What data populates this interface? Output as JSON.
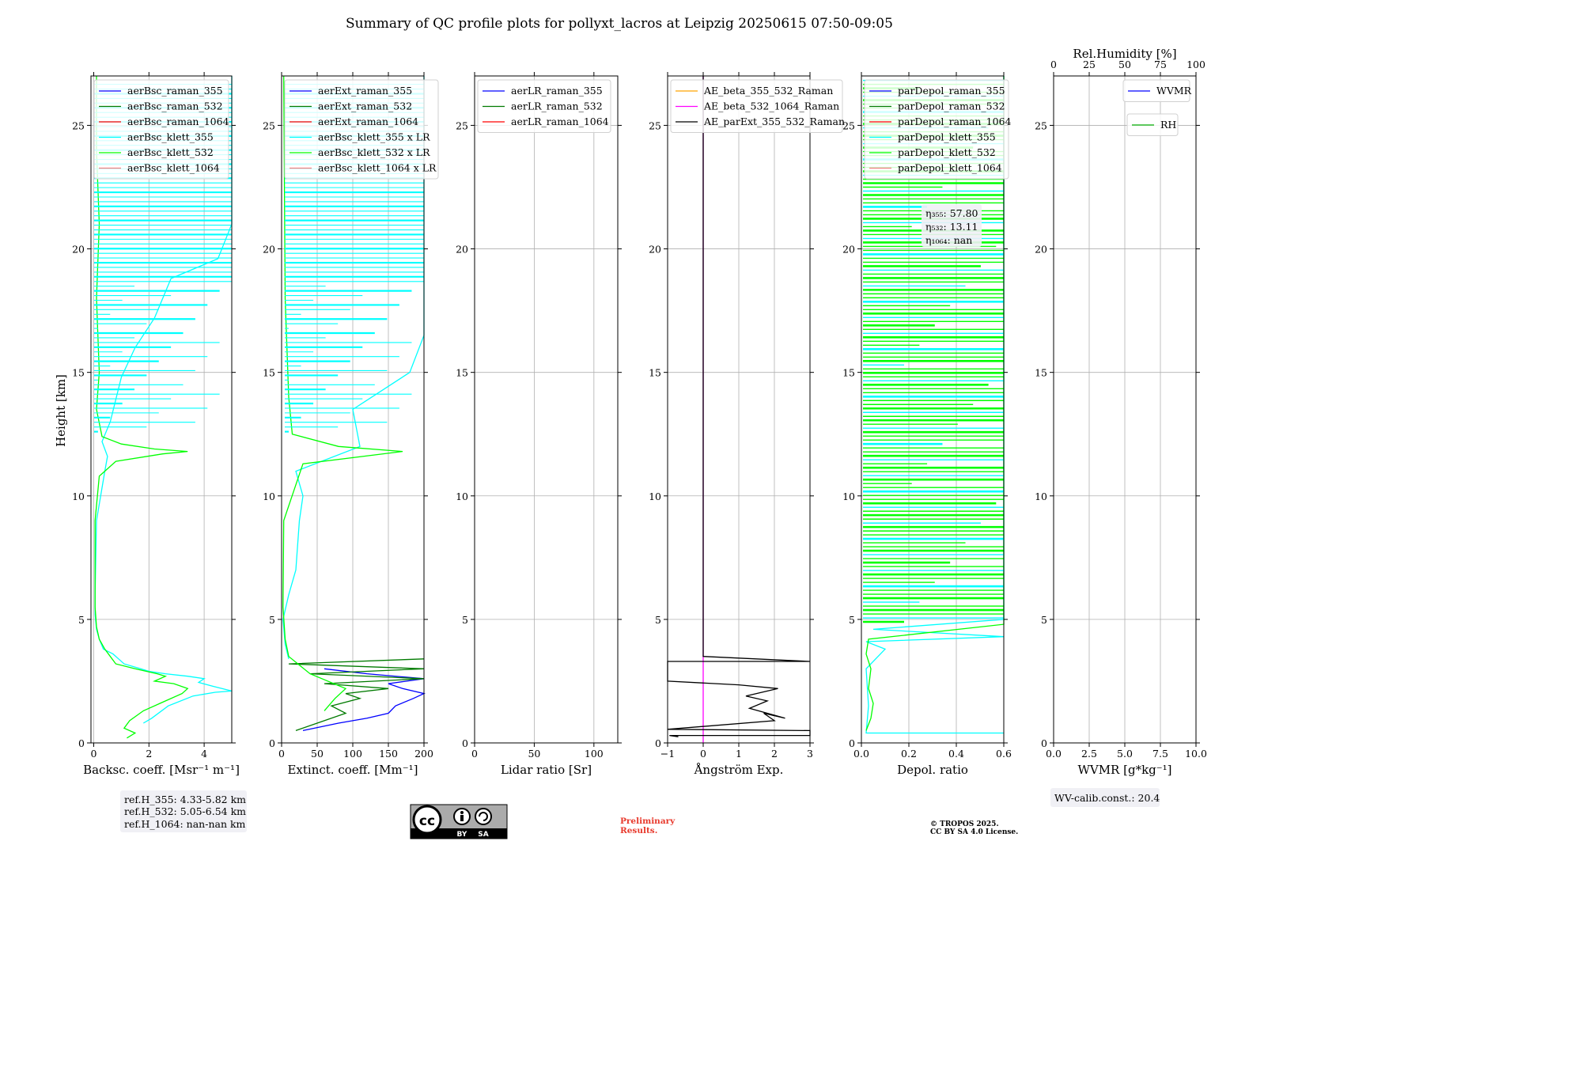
{
  "figure": {
    "title": "Summary of QC profile plots for pollyxt_lacros at Leipzig 20250615 07:50-09:05",
    "ylabel": "Height [km]",
    "ref_heights": [
      "ref.H_355: 4.33-5.82 km",
      "ref.H_532: 5.05-6.54 km",
      "ref.H_1064: nan-nan km"
    ],
    "wv_calib": "WV-calib.const.: 20.4",
    "preliminary": [
      "Preliminary",
      "Results."
    ],
    "copyright": [
      "© TROPOS 2025.",
      "CC BY SA 4.0 License."
    ],
    "license_badge": {
      "icon": "cc-by-sa-icon",
      "labels": [
        "BY",
        "SA"
      ]
    },
    "colors": {
      "blue": "#0000ff",
      "darkgreen": "#007a00",
      "red": "#ff0000",
      "cyan": "#00ffff",
      "lime": "#00ff00",
      "salmon": "#f08080",
      "orange": "#ffa500",
      "magenta": "#ff00ff",
      "black": "#000000"
    }
  },
  "chart_data": [
    {
      "type": "line",
      "name": "backscatter",
      "xlabel": "Backsc. coeff. [Msr⁻¹ m⁻¹]",
      "xlim": [
        -0.1,
        5
      ],
      "ylim": [
        0,
        27
      ],
      "xticks": [
        "0",
        "2",
        "4"
      ],
      "xtick_values": [
        0,
        2,
        4
      ],
      "yticks": [
        "0",
        "5",
        "10",
        "15",
        "20",
        "25"
      ],
      "legend": [
        "aerBsc_raman_355",
        "aerBsc_raman_532",
        "aerBsc_raman_1064",
        "aerBsc_klett_355",
        "aerBsc_klett_532",
        "aerBsc_klett_1064"
      ],
      "legend_colors": [
        "#0000ff",
        "#007a00",
        "#ff0000",
        "#00ffff",
        "#00ff00",
        "#f08080"
      ],
      "series": [
        {
          "name": "aerBsc_klett_355",
          "color": "#00ffff",
          "points": [
            [
              1.8,
              0.8
            ],
            [
              2.1,
              1.0
            ],
            [
              2.7,
              1.5
            ],
            [
              3.6,
              1.9
            ],
            [
              4.4,
              2.05
            ],
            [
              5.0,
              2.1
            ],
            [
              4.3,
              2.3
            ],
            [
              3.8,
              2.45
            ],
            [
              4.0,
              2.6
            ],
            [
              3.4,
              2.7
            ],
            [
              2.6,
              2.8
            ],
            [
              2.0,
              2.9
            ],
            [
              1.7,
              3.0
            ],
            [
              1.1,
              3.2
            ],
            [
              0.9,
              3.4
            ],
            [
              0.7,
              3.6
            ],
            [
              0.35,
              3.8
            ],
            [
              0.2,
              4.2
            ],
            [
              0.1,
              4.6
            ],
            [
              0.05,
              5.2
            ],
            [
              0.05,
              6.0
            ],
            [
              0.1,
              9.0
            ],
            [
              0.4,
              11.0
            ],
            [
              0.5,
              11.6
            ],
            [
              0.3,
              12.2
            ],
            [
              0.6,
              13.0
            ],
            [
              1.0,
              14.8
            ],
            [
              1.5,
              16.0
            ],
            [
              2.2,
              17.2
            ],
            [
              2.8,
              18.8
            ],
            [
              4.5,
              19.6
            ],
            [
              5.0,
              21.0
            ],
            [
              5.0,
              22.5
            ],
            [
              5.0,
              24.0
            ],
            [
              5.0,
              25.5
            ],
            [
              5.0,
              27.0
            ]
          ]
        },
        {
          "name": "aerBsc_klett_532",
          "color": "#00ff00",
          "points": [
            [
              1.2,
              0.2
            ],
            [
              1.5,
              0.4
            ],
            [
              1.1,
              0.6
            ],
            [
              1.3,
              0.9
            ],
            [
              1.8,
              1.3
            ],
            [
              2.4,
              1.6
            ],
            [
              3.2,
              2.0
            ],
            [
              3.4,
              2.2
            ],
            [
              2.9,
              2.4
            ],
            [
              2.2,
              2.5
            ],
            [
              2.6,
              2.7
            ],
            [
              2.3,
              2.8
            ],
            [
              1.5,
              3.0
            ],
            [
              0.8,
              3.2
            ],
            [
              0.6,
              3.5
            ],
            [
              0.4,
              3.8
            ],
            [
              0.2,
              4.2
            ],
            [
              0.1,
              4.7
            ],
            [
              0.05,
              5.5
            ],
            [
              0.05,
              9.0
            ],
            [
              0.2,
              10.8
            ],
            [
              0.8,
              11.4
            ],
            [
              2.5,
              11.7
            ],
            [
              3.4,
              11.8
            ],
            [
              2.2,
              11.9
            ],
            [
              1.0,
              12.1
            ],
            [
              0.3,
              12.4
            ],
            [
              0.1,
              13.5
            ],
            [
              0.2,
              15.0
            ],
            [
              0.1,
              18.0
            ],
            [
              0.2,
              21.0
            ],
            [
              0.1,
              24.0
            ],
            [
              0.1,
              27.0
            ]
          ]
        }
      ]
    },
    {
      "type": "line",
      "name": "extinction",
      "xlabel": "Extinct. coeff. [Mm⁻¹]",
      "xlim": [
        0,
        200
      ],
      "ylim": [
        0,
        27
      ],
      "xticks": [
        "0",
        "50",
        "100",
        "150",
        "200"
      ],
      "xtick_values": [
        0,
        50,
        100,
        150,
        200
      ],
      "yticks": [
        "0",
        "5",
        "10",
        "15",
        "20",
        "25"
      ],
      "legend": [
        "aerExt_raman_355",
        "aerExt_raman_532",
        "aerExt_raman_1064",
        "aerBsc_klett_355 x LR",
        "aerBsc_klett_532 x LR",
        "aerBsc_klett_1064 x LR"
      ],
      "legend_colors": [
        "#0000ff",
        "#007a00",
        "#ff0000",
        "#00ffff",
        "#00ff00",
        "#f08080"
      ],
      "series": [
        {
          "name": "aerExt_raman_355",
          "color": "#0000ff",
          "points": [
            [
              30,
              0.5
            ],
            [
              80,
              0.8
            ],
            [
              120,
              1.0
            ],
            [
              150,
              1.2
            ],
            [
              160,
              1.5
            ],
            [
              185,
              1.8
            ],
            [
              200,
              2.0
            ],
            [
              170,
              2.2
            ],
            [
              150,
              2.4
            ],
            [
              200,
              2.6
            ],
            [
              120,
              2.8
            ],
            [
              60,
              3.0
            ]
          ]
        },
        {
          "name": "aerExt_raman_532",
          "color": "#007a00",
          "points": [
            [
              20,
              0.5
            ],
            [
              60,
              0.9
            ],
            [
              90,
              1.2
            ],
            [
              70,
              1.5
            ],
            [
              110,
              1.8
            ],
            [
              90,
              2.0
            ],
            [
              150,
              2.2
            ],
            [
              60,
              2.4
            ],
            [
              200,
              2.6
            ],
            [
              40,
              2.8
            ],
            [
              200,
              3.0
            ],
            [
              10,
              3.2
            ],
            [
              200,
              3.4
            ]
          ]
        },
        {
          "name": "aerBsc_klett_355 x LR",
          "color": "#00ffff",
          "points": [
            [
              10,
              3.4
            ],
            [
              5,
              4.0
            ],
            [
              2,
              5.0
            ],
            [
              10,
              6.0
            ],
            [
              20,
              7.0
            ],
            [
              25,
              9.0
            ],
            [
              30,
              10.0
            ],
            [
              20,
              11.0
            ],
            [
              110,
              12.0
            ],
            [
              100,
              13.5
            ],
            [
              180,
              15.0
            ],
            [
              200,
              16.5
            ],
            [
              200,
              17.5
            ],
            [
              200,
              19.0
            ],
            [
              200,
              20.0
            ],
            [
              200,
              22.0
            ],
            [
              200,
              25.0
            ],
            [
              200,
              27.0
            ]
          ]
        },
        {
          "name": "aerBsc_klett_532 x LR",
          "color": "#00ff00",
          "points": [
            [
              60,
              1.3
            ],
            [
              75,
              1.8
            ],
            [
              90,
              2.2
            ],
            [
              40,
              2.8
            ],
            [
              10,
              3.5
            ],
            [
              5,
              4.2
            ],
            [
              2,
              5.5
            ],
            [
              3,
              9.0
            ],
            [
              30,
              11.3
            ],
            [
              170,
              11.8
            ],
            [
              80,
              12.0
            ],
            [
              15,
              12.5
            ],
            [
              10,
              14.0
            ],
            [
              5,
              18.0
            ],
            [
              3,
              27.0
            ]
          ]
        }
      ]
    },
    {
      "type": "line",
      "name": "lidar_ratio",
      "xlabel": "Lidar ratio [Sr]",
      "xlim": [
        0,
        120
      ],
      "ylim": [
        0,
        27
      ],
      "xticks": [
        "0",
        "50",
        "100"
      ],
      "xtick_values": [
        0,
        50,
        100
      ],
      "yticks": [
        "0",
        "5",
        "10",
        "15",
        "20",
        "25"
      ],
      "legend": [
        "aerLR_raman_355",
        "aerLR_raman_532",
        "aerLR_raman_1064"
      ],
      "legend_colors": [
        "#0000ff",
        "#007a00",
        "#ff0000"
      ],
      "series": []
    },
    {
      "type": "line",
      "name": "angstrom",
      "xlabel": "Ångström Exp.",
      "xlim": [
        -1,
        3
      ],
      "ylim": [
        0,
        27
      ],
      "xticks": [
        "−1",
        "0",
        "1",
        "2",
        "3"
      ],
      "xtick_values": [
        -1,
        0,
        1,
        2,
        3
      ],
      "yticks": [
        "0",
        "5",
        "10",
        "15",
        "20",
        "25"
      ],
      "legend": [
        "AE_beta_355_532_Raman",
        "AE_beta_532_1064_Raman",
        "AE_parExt_355_532_Raman"
      ],
      "legend_colors": [
        "#ffa500",
        "#ff00ff",
        "#000000"
      ],
      "series": [
        {
          "name": "AE_beta_532_1064_Raman",
          "color": "#ff00ff",
          "points": [
            [
              0,
              0.0
            ],
            [
              0,
              27.0
            ]
          ]
        },
        {
          "name": "AE_parExt_355_532_Raman",
          "color": "#000000",
          "points": [
            [
              -0.7,
              0.25
            ],
            [
              -0.95,
              0.3
            ],
            [
              3.0,
              0.3
            ],
            [
              3.0,
              0.5
            ],
            [
              -1.0,
              0.55
            ],
            [
              2.0,
              0.9
            ],
            [
              1.7,
              1.2
            ],
            [
              2.3,
              1.0
            ],
            [
              1.3,
              1.4
            ],
            [
              1.8,
              1.7
            ],
            [
              1.2,
              1.9
            ],
            [
              2.1,
              2.2
            ],
            [
              1.0,
              2.35
            ],
            [
              -1.0,
              2.5
            ],
            [
              -1.0,
              3.3
            ],
            [
              3.0,
              3.3
            ],
            [
              0.0,
              3.5
            ],
            [
              0.0,
              27.0
            ]
          ]
        }
      ]
    },
    {
      "type": "line",
      "name": "depolarization",
      "xlabel": "Depol. ratio",
      "xlim": [
        0,
        0.6
      ],
      "ylim": [
        0,
        27
      ],
      "xticks": [
        "0.0",
        "0.2",
        "0.4",
        "0.6"
      ],
      "xtick_values": [
        0,
        0.2,
        0.4,
        0.6
      ],
      "yticks": [
        "0",
        "5",
        "10",
        "15",
        "20",
        "25"
      ],
      "legend": [
        "parDepol_raman_355",
        "parDepol_raman_532",
        "parDepol_raman_1064",
        "parDepol_klett_355",
        "parDepol_klett_532",
        "parDepol_klett_1064"
      ],
      "legend_colors": [
        "#0000ff",
        "#007a00",
        "#ff0000",
        "#00ffff",
        "#00ff00",
        "#f08080"
      ],
      "annotations": [
        "η₃₅₅: 57.80",
        "η₅₃₂: 13.11",
        "η₁₀₆₄: nan"
      ],
      "series": [
        {
          "name": "parDepol_klett_355",
          "color": "#00ffff",
          "points": [
            [
              0.6,
              0.4
            ],
            [
              0.02,
              0.4
            ],
            [
              0.03,
              1.5
            ],
            [
              0.02,
              3.0
            ],
            [
              0.1,
              3.8
            ],
            [
              0.02,
              4.1
            ],
            [
              0.6,
              4.3
            ],
            [
              0.05,
              4.6
            ],
            [
              0.6,
              5.0
            ],
            [
              0.6,
              27.0
            ]
          ]
        },
        {
          "name": "parDepol_klett_532",
          "color": "#00ff00",
          "points": [
            [
              0.02,
              0.5
            ],
            [
              0.04,
              1.0
            ],
            [
              0.05,
              1.6
            ],
            [
              0.03,
              2.2
            ],
            [
              0.04,
              3.0
            ],
            [
              0.02,
              3.6
            ],
            [
              0.03,
              4.2
            ],
            [
              0.6,
              4.8
            ],
            [
              0.6,
              27.0
            ]
          ]
        }
      ]
    },
    {
      "type": "line",
      "name": "wvmr_rh",
      "xlabel": "WVMR [g*kg⁻¹]",
      "xlim": [
        0,
        10
      ],
      "ylim": [
        0,
        27
      ],
      "xticks": [
        "0.0",
        "2.5",
        "5.0",
        "7.5",
        "10.0"
      ],
      "xtick_values": [
        0,
        2.5,
        5,
        7.5,
        10
      ],
      "yticks": [
        "0",
        "5",
        "10",
        "15",
        "20",
        "25"
      ],
      "top_xlabel": "Rel.Humidity [%]",
      "top_xticks": [
        "0",
        "25",
        "50",
        "75",
        "100"
      ],
      "legend": [
        "WVMR"
      ],
      "legend_colors": [
        "#0000ff"
      ],
      "legend2": [
        "RH"
      ],
      "legend2_colors": [
        "#00aa00"
      ],
      "series": []
    }
  ]
}
